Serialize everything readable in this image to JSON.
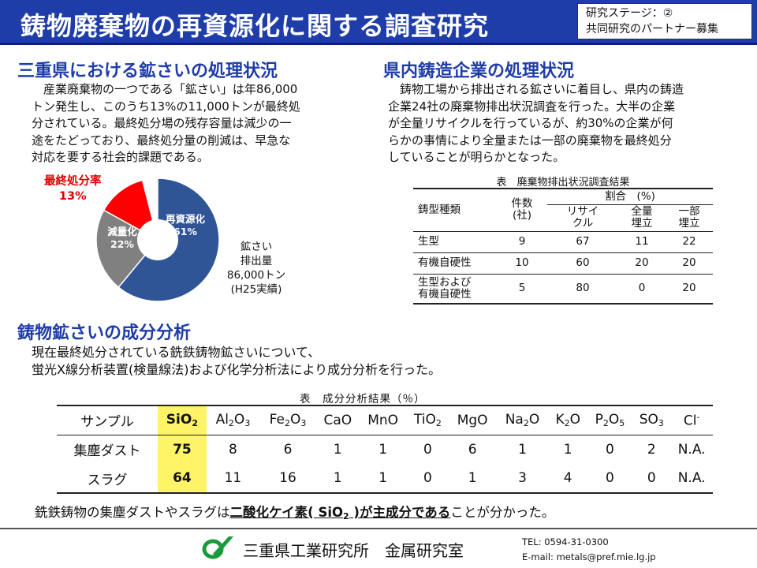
{
  "header": {
    "title": "鋳物廃棄物の再資源化に関する調査研究",
    "stage_line1": "研究ステージ：②",
    "stage_line2": "共同研究のパートナー募集"
  },
  "section1": {
    "title": "三重県における鉱さいの処理状況",
    "paragraph": [
      "　産業廃棄物の一つである「鉱さい」は年86,000",
      "トン発生し、このうち13%の11,000トンが最終処",
      "分されている。最終処分場の残存容量は減少の一",
      "途をたどっており、最終処分量の削減は、早急な",
      "対応を要する社会的課題である。"
    ],
    "pie_labels": {
      "recycle_line1": "再資源化",
      "recycle_line2": "61%",
      "reduction_line1": "減量化",
      "reduction_line2": "22%",
      "final_line1": "最終処分率",
      "final_line2": "13%"
    },
    "emission": [
      "鉱さい",
      "排出量",
      "86,000トン",
      "(H25実績)"
    ]
  },
  "chart_data": {
    "type": "pie",
    "slices": [
      {
        "name": "再資源化",
        "value": 61,
        "color": "#2f5597"
      },
      {
        "name": "減量化",
        "value": 22,
        "color": "#808080"
      },
      {
        "name": "最終処分率",
        "value": 13,
        "color": "#ff0000"
      }
    ]
  },
  "section2": {
    "title": "県内鋳造企業の処理状況",
    "paragraph": [
      "　鋳物工場から排出される鉱さいに着目し、県内の鋳造",
      "企業24社の廃棄物排出状況調査を行った。大半の企業",
      "が全量リサイクルを行っているが、約30%の企業が何",
      "らかの事情により全量または一部の廃棄物を最終処分",
      "していることが明らかとなった。"
    ],
    "table_caption": "表　廃棄物排出状況調査結果",
    "headers": {
      "type": "鋳型種類",
      "count": "件数\n(社)",
      "ratio": "割合　(%)",
      "recycle": "リサイ\nクル",
      "full_landfill": "全量\n埋立",
      "partial_landfill": "一部\n埋立"
    },
    "rows": [
      {
        "type": "生型",
        "count": "9",
        "recycle": "67",
        "full": "11",
        "partial": "22"
      },
      {
        "type": "有機自硬性",
        "count": "10",
        "recycle": "60",
        "full": "20",
        "partial": "20"
      },
      {
        "type": "生型および\n有機自硬性",
        "count": "5",
        "recycle": "80",
        "full": "0",
        "partial": "20"
      }
    ]
  },
  "section3": {
    "title": "鋳物鉱さいの成分分析",
    "paragraph": [
      "現在最終処分されている銑鉄鋳物鉱さいについて、",
      "蛍光X線分析装置(検量線法)および化学分析法により成分分析を行った。"
    ],
    "table_caption": "表　成分分析結果（％）",
    "sample_header": "サンプル",
    "components": [
      {
        "base": "SiO",
        "sub": "2",
        "rest": ""
      },
      {
        "base": "Al",
        "sub": "2",
        "rest": "O",
        "sub2": "3"
      },
      {
        "base": "Fe",
        "sub": "2",
        "rest": "O",
        "sub2": "3"
      },
      {
        "base": "CaO",
        "sub": "",
        "rest": ""
      },
      {
        "base": "MnO",
        "sub": "",
        "rest": ""
      },
      {
        "base": "TiO",
        "sub": "2",
        "rest": ""
      },
      {
        "base": "MgO",
        "sub": "",
        "rest": ""
      },
      {
        "base": "Na",
        "sub": "2",
        "rest": "O"
      },
      {
        "base": "K",
        "sub": "2",
        "rest": "O"
      },
      {
        "base": "P",
        "sub": "2",
        "rest": "O",
        "sub2": "5"
      },
      {
        "base": "SO",
        "sub": "3",
        "rest": ""
      },
      {
        "base": "Cl",
        "sup": "-",
        "rest": ""
      }
    ],
    "rows": [
      {
        "sample": "集塵ダスト",
        "values": [
          "75",
          "8",
          "6",
          "1",
          "1",
          "0",
          "6",
          "1",
          "1",
          "0",
          "2",
          "N.A."
        ]
      },
      {
        "sample": "スラグ",
        "values": [
          "64",
          "11",
          "16",
          "1",
          "1",
          "0",
          "1",
          "3",
          "4",
          "0",
          "0",
          "N.A."
        ]
      }
    ],
    "conclusion_pre": "銑鉄鋳物の集塵ダストやスラグは",
    "conclusion_bold_a": "二酸化ケイ素( SiO",
    "conclusion_bold_sub": "2",
    "conclusion_bold_b": " )が主成分である",
    "conclusion_post": "ことが分かった。"
  },
  "footer": {
    "org": "三重県工業研究所　金属研究室",
    "tel": "TEL: 0594-31-0300",
    "email": "E-mail: metals@pref.mie.lg.jp"
  }
}
